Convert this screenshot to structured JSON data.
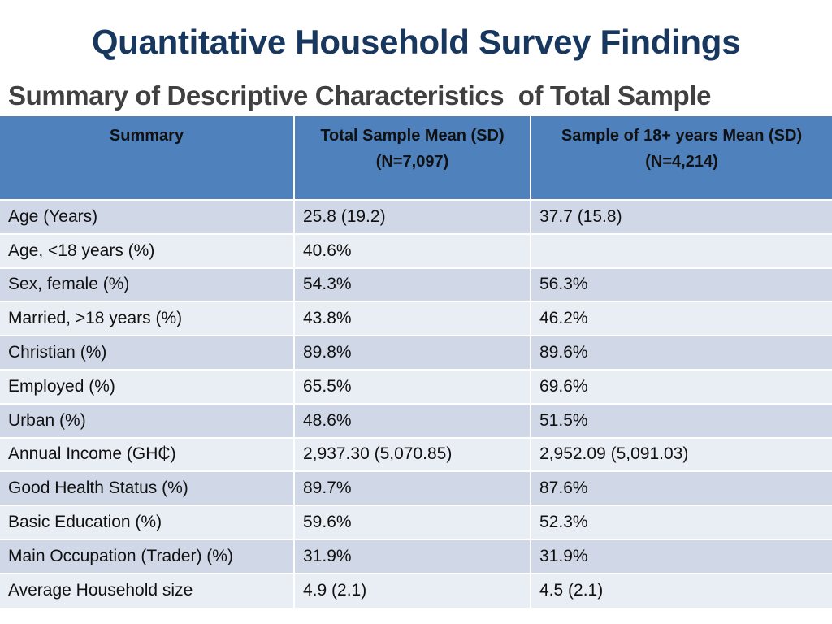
{
  "slide": {
    "title": "Quantitative Household Survey Findings",
    "subtitle": "Summary of Descriptive Characteristics  of Total Sample"
  },
  "table": {
    "headers": [
      {
        "line1": "Summary",
        "line2": ""
      },
      {
        "line1": "Total Sample Mean (SD)",
        "line2": "(N=7,097)"
      },
      {
        "line1": "Sample of 18+ years Mean (SD)",
        "line2": "(N=4,214)"
      }
    ],
    "rows": [
      [
        "Age (Years)",
        "25.8 (19.2)",
        "37.7 (15.8)"
      ],
      [
        "Age, <18 years (%)",
        "40.6%",
        ""
      ],
      [
        "Sex, female (%)",
        "54.3%",
        "56.3%"
      ],
      [
        "Married, >18 years (%)",
        "43.8%",
        "46.2%"
      ],
      [
        "Christian (%)",
        "89.8%",
        "89.6%"
      ],
      [
        "Employed  (%)",
        "65.5%",
        "69.6%"
      ],
      [
        "Urban (%)",
        "48.6%",
        "51.5%"
      ],
      [
        "Annual Income (GH₵)",
        "2,937.30 (5,070.85)",
        "2,952.09 (5,091.03)"
      ],
      [
        "Good Health Status (%)",
        "89.7%",
        "87.6%"
      ],
      [
        "Basic Education (%)",
        "59.6%",
        "52.3%"
      ],
      [
        "Main Occupation (Trader) (%)",
        "31.9%",
        "31.9%"
      ],
      [
        "Average Household size",
        "4.9 (2.1)",
        "4.5 (2.1)"
      ]
    ]
  },
  "colors": {
    "title": "#17375e",
    "header_bg": "#4f81bd",
    "row_odd_bg": "#d0d8e8",
    "row_even_bg": "#e9edf4"
  }
}
